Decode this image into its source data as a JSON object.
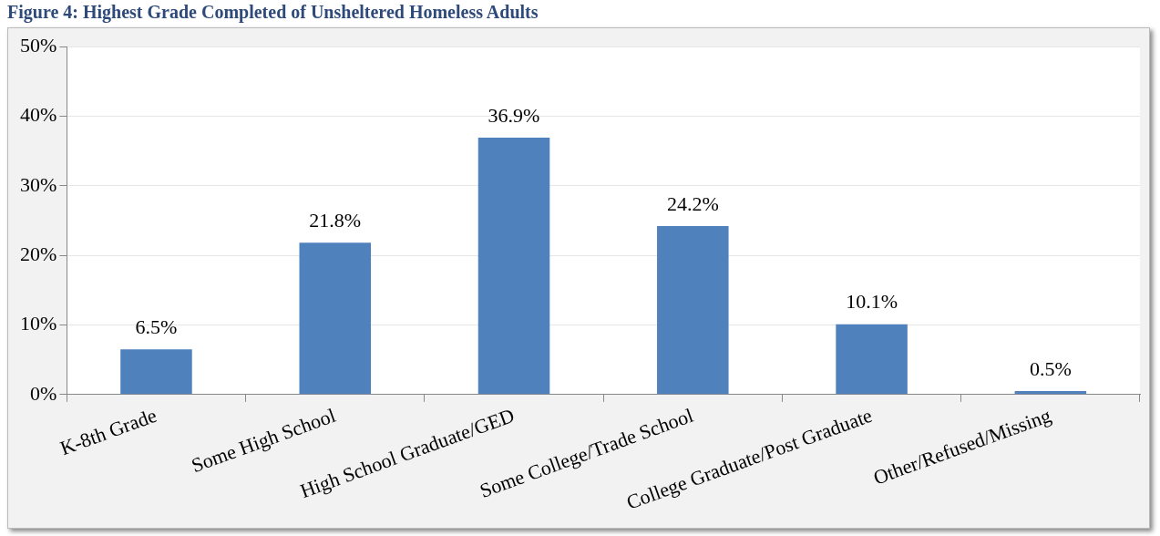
{
  "chart_data": {
    "type": "bar",
    "title": "Figure 4: Highest Grade Completed of Unsheltered Homeless Adults",
    "categories": [
      "K-8th Grade",
      "Some High School",
      "High School Graduate/GED",
      "Some College/Trade School",
      "College Graduate/Post Graduate",
      "Other/Refused/Missing"
    ],
    "values": [
      6.5,
      21.8,
      36.9,
      24.2,
      10.1,
      0.5
    ],
    "value_labels": [
      "6.5%",
      "21.8%",
      "36.9%",
      "24.2%",
      "10.1%",
      "0.5%"
    ],
    "color": "#4f81bd",
    "ylim": [
      0,
      50
    ],
    "yticks": [
      {
        "value": 0,
        "label": "0%"
      },
      {
        "value": 10,
        "label": "10%"
      },
      {
        "value": 20,
        "label": "20%"
      },
      {
        "value": 30,
        "label": "30%"
      },
      {
        "value": 40,
        "label": "40%"
      },
      {
        "value": 50,
        "label": "50%"
      }
    ],
    "grid": "y",
    "legend": false
  }
}
